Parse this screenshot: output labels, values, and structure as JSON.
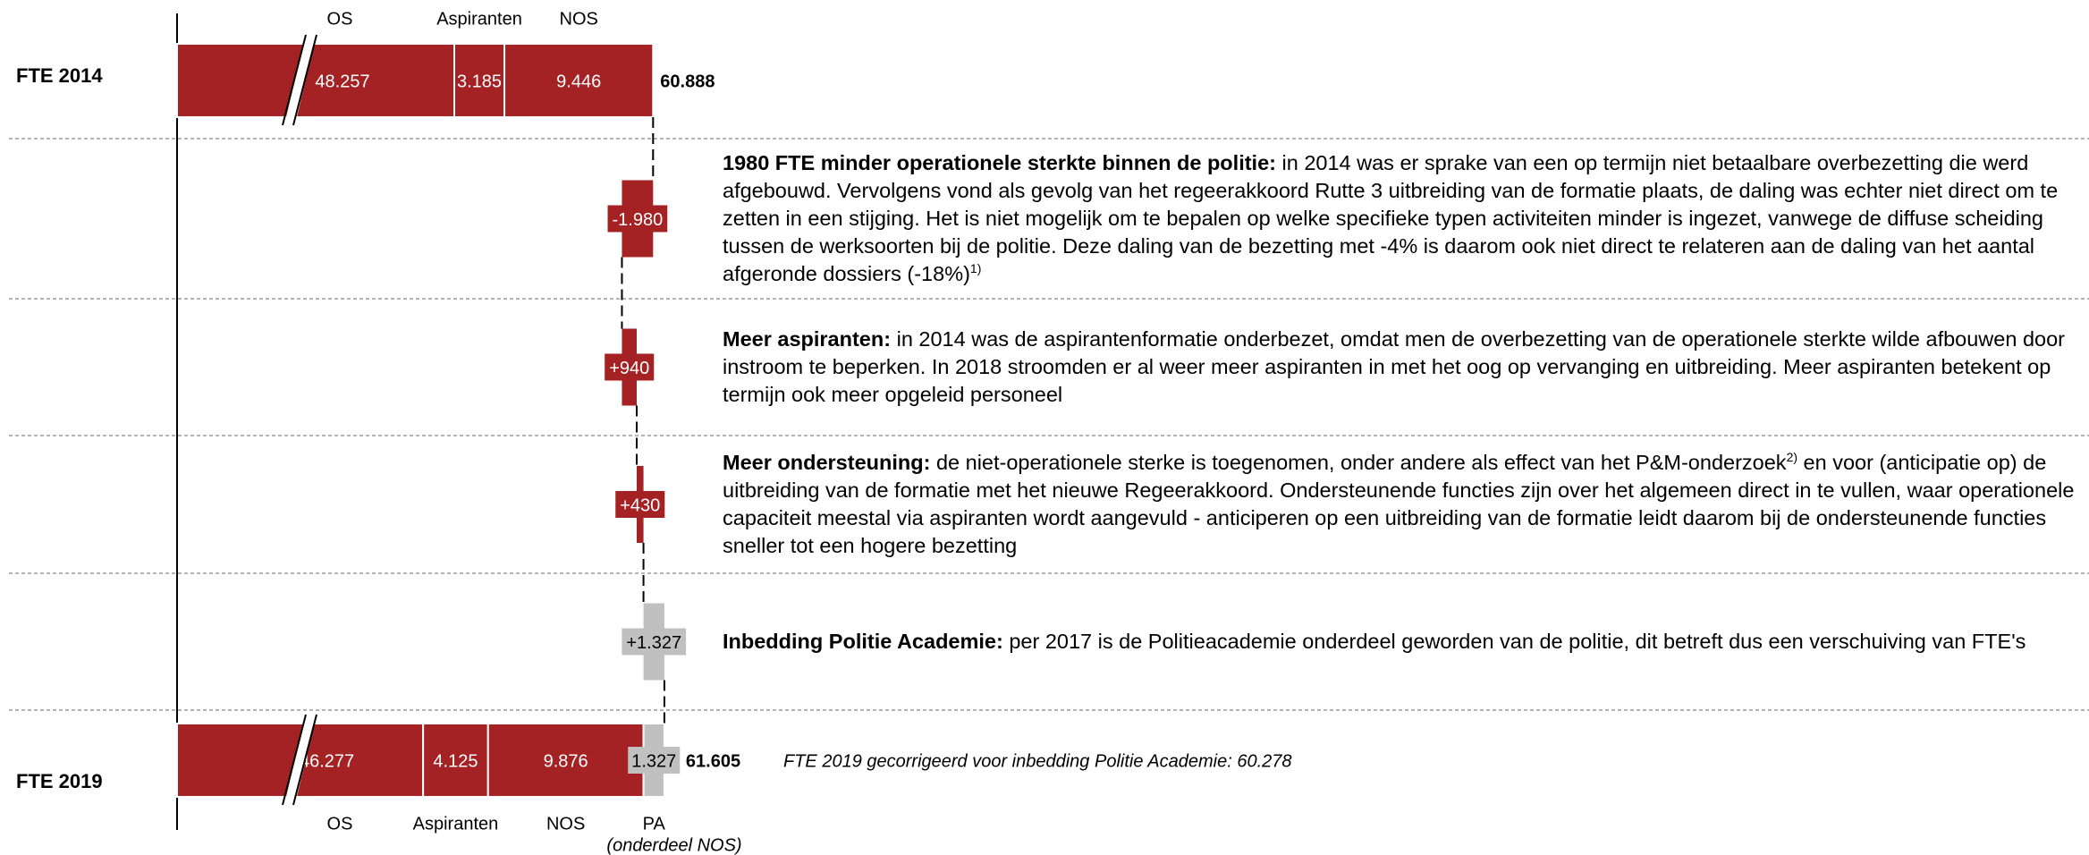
{
  "chart_data": {
    "type": "waterfall",
    "bars": [
      {
        "name": "FTE 2014",
        "categories": [
          "OS",
          "Aspiranten",
          "NOS"
        ],
        "values": [
          48257,
          3185,
          9446
        ],
        "value_labels": [
          "48.257",
          "3.185",
          "9.446"
        ],
        "colors": [
          "#a52224",
          "#a52224",
          "#a52224"
        ],
        "total": 60888,
        "total_label": "60.888"
      },
      {
        "name": "FTE 2019",
        "categories": [
          "OS",
          "Aspiranten",
          "NOS",
          "PA"
        ],
        "values": [
          46277,
          4125,
          9876,
          1327
        ],
        "value_labels": [
          "46.277",
          "4.125",
          "9.876",
          "1.327"
        ],
        "colors": [
          "#a52224",
          "#a52224",
          "#a52224",
          "#c0c0c0"
        ],
        "total": 61605,
        "total_label": "61.605",
        "category_note": "(onderdeel NOS)",
        "annotation": "FTE 2019 gecorrigeerd voor inbedding Politie Academie: 60.278"
      }
    ],
    "steps": {
      "values": [
        -1980,
        940,
        430,
        1327
      ],
      "value_labels": [
        "-1.980",
        "+940",
        "+430",
        "+1.327"
      ],
      "colors": [
        "#a52224",
        "#a52224",
        "#a52224",
        "#c0c0c0"
      ],
      "explanations": [
        {
          "heading": "1980 FTE minder operationele sterkte binnen de politie:",
          "text": [
            " in 2014 was er sprake van een op termijn niet betaalbare overbezetting die werd afgebouwd. Vervolgens vond als gevolg van het regeerakkoord Rutte 3 uitbreiding van de formatie plaats, de daling was echter niet direct om te zetten in een stijging. Het is niet mogelijk om te bepalen op welke specifieke typen activiteiten minder is ingezet, vanwege de diffuse scheiding tussen de werksoorten bij de politie. Deze daling van de bezetting met -4% is daarom ook niet direct te relateren aan de daling van het aantal afgeronde dossiers (-18%)"
          ],
          "sup": "1)"
        },
        {
          "heading": "Meer aspiranten:",
          "text": [
            " in 2014 was de aspirantenformatie onderbezet, omdat men de overbezetting van de operationele sterkte wilde afbouwen door instroom te beperken. In 2018 stroomden er al weer meer aspiranten in met het oog op vervanging en uitbreiding. Meer aspiranten betekent op termijn ook meer opgeleid personeel"
          ]
        },
        {
          "heading": "Meer ondersteuning:",
          "text": [
            " de niet-operationele sterke is toegenomen, onder andere als effect van het P&M-onderzoek",
            " en voor (anticipatie op) de uitbreiding van de formatie met het nieuwe Regeerakkoord. Ondersteunende functies zijn over het algemeen direct in te vullen, waar operationele capaciteit meestal via aspiranten wordt aangevuld - anticiperen op een uitbreiding van de formatie leidt daarom bij de ondersteunende functies sneller tot een hogere bezetting"
          ],
          "sup": "2)"
        },
        {
          "heading": "Inbedding Politie Academie:",
          "text": [
            " per 2017 is de Politieacademie onderdeel geworden van de politie, dit betreft dus een verschuiving van FTE's"
          ]
        }
      ]
    }
  }
}
